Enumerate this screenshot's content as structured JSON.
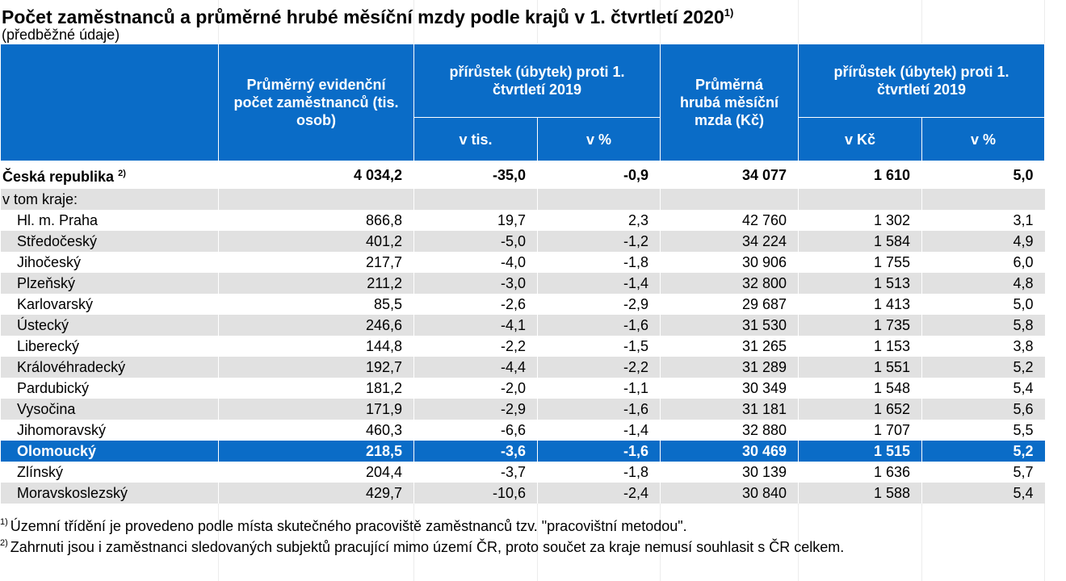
{
  "title": {
    "text": "Počet zaměstnanců a průměrné hrubé měsíční mzdy podle krajů v 1. čtvrtletí 2020",
    "note": "1)"
  },
  "subtitle": "(předběžné údaje)",
  "header": {
    "col1": "Průměrný evidenční počet zaměstnanců (tis. osob)",
    "group1": "přírůstek (úbytek) proti 1. čtvrtletí 2019",
    "col2": "v tis.",
    "col3": "v %",
    "col4": "Průměrná hrubá měsíční mzda (Kč)",
    "group2": "přírůstek (úbytek) proti 1. čtvrtletí 2019",
    "col5": "v Kč",
    "col6": "v %"
  },
  "total": {
    "name": "Česká republika",
    "note": "2)",
    "values": [
      "4 034,2",
      "-35,0",
      "-0,9",
      "34 077",
      "1 610",
      "5,0"
    ]
  },
  "section_label": "v tom kraje:",
  "rows": [
    {
      "name": "Hl. m. Praha",
      "values": [
        "866,8",
        "19,7",
        "2,3",
        "42 760",
        "1 302",
        "3,1"
      ]
    },
    {
      "name": "Středočeský",
      "values": [
        "401,2",
        "-5,0",
        "-1,2",
        "34 224",
        "1 584",
        "4,9"
      ]
    },
    {
      "name": "Jihočeský",
      "values": [
        "217,7",
        "-4,0",
        "-1,8",
        "30 906",
        "1 755",
        "6,0"
      ]
    },
    {
      "name": "Plzeňský",
      "values": [
        "211,2",
        "-3,0",
        "-1,4",
        "32 800",
        "1 513",
        "4,8"
      ]
    },
    {
      "name": "Karlovarský",
      "values": [
        "85,5",
        "-2,6",
        "-2,9",
        "29 687",
        "1 413",
        "5,0"
      ]
    },
    {
      "name": "Ústecký",
      "values": [
        "246,6",
        "-4,1",
        "-1,6",
        "31 530",
        "1 735",
        "5,8"
      ]
    },
    {
      "name": "Liberecký",
      "values": [
        "144,8",
        "-2,2",
        "-1,5",
        "31 265",
        "1 153",
        "3,8"
      ]
    },
    {
      "name": "Královéhradecký",
      "values": [
        "192,7",
        "-4,4",
        "-2,2",
        "31 289",
        "1 551",
        "5,2"
      ]
    },
    {
      "name": "Pardubický",
      "values": [
        "181,2",
        "-2,0",
        "-1,1",
        "30 349",
        "1 548",
        "5,4"
      ]
    },
    {
      "name": "Vysočina",
      "values": [
        "171,9",
        "-2,9",
        "-1,6",
        "31 181",
        "1 652",
        "5,6"
      ]
    },
    {
      "name": "Jihomoravský",
      "values": [
        "460,3",
        "-6,6",
        "-1,4",
        "32 880",
        "1 707",
        "5,5"
      ]
    },
    {
      "name": "Olomoucký",
      "values": [
        "218,5",
        "-3,6",
        "-1,6",
        "30 469",
        "1 515",
        "5,2"
      ]
    },
    {
      "name": "Zlínský",
      "values": [
        "204,4",
        "-3,7",
        "-1,8",
        "30 139",
        "1 636",
        "5,7"
      ]
    },
    {
      "name": "Moravskoslezský",
      "values": [
        "429,7",
        "-10,6",
        "-2,4",
        "30 840",
        "1 588",
        "5,4"
      ]
    }
  ],
  "highlighted_row": "Olomoucký",
  "footnotes": [
    {
      "mark": "1)",
      "text": "Územní třídění je provedeno podle místa skutečného pracoviště zaměstnanců tzv. \"pracovištní metodou\"."
    },
    {
      "mark": "2)",
      "text": "Zahrnuti jsou i zaměstnanci sledovaných subjektů pracující mimo území ČR, proto součet za kraje nemusí souhlasit s ČR celkem."
    }
  ],
  "colors": {
    "header_bg": "#0a6cc7",
    "stripe": "#e1e1e1",
    "highlight": "#0a6cc7"
  }
}
